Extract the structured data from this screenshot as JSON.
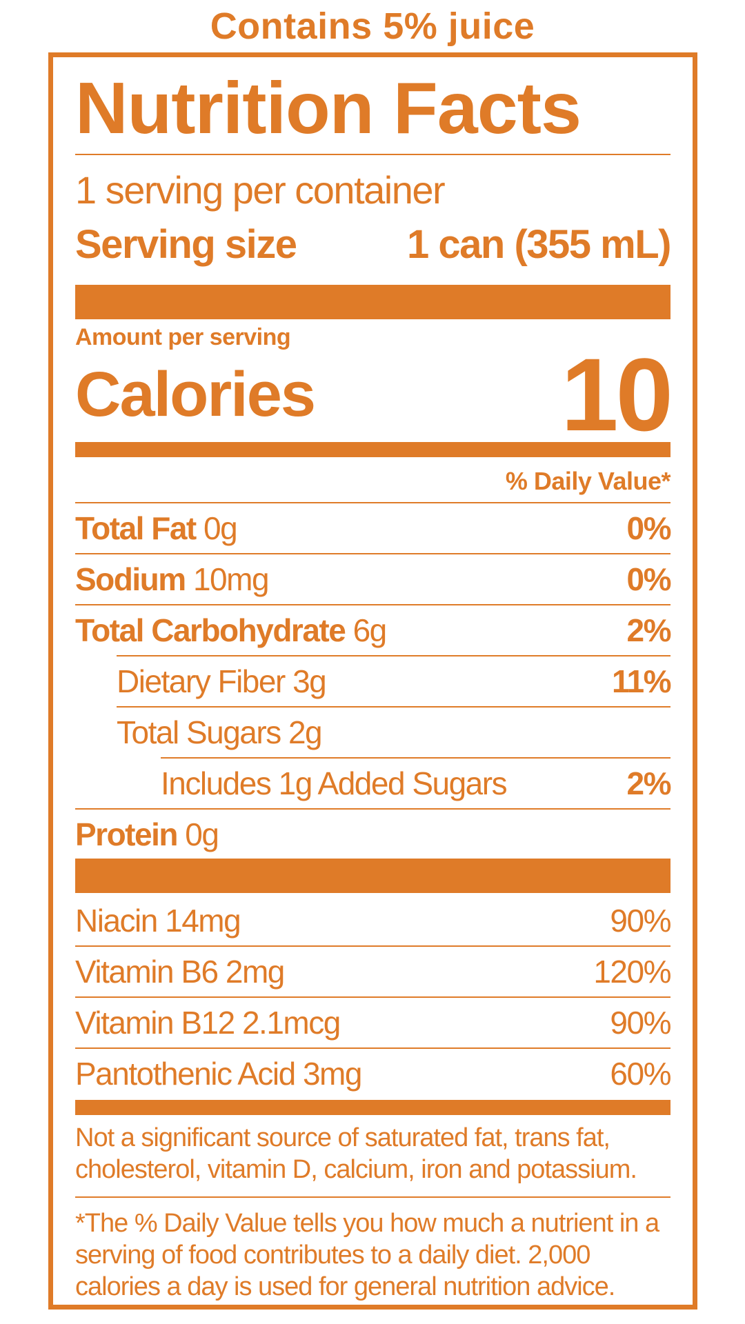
{
  "banner": "Contains 5% juice",
  "title": "Nutrition Facts",
  "servings_per_container": "1 serving per container",
  "serving_size": {
    "label": "Serving size",
    "value": "1 can (355 mL)"
  },
  "amount_per_serving": "Amount per serving",
  "calories": {
    "label": "Calories",
    "value": "10"
  },
  "daily_value_header": "% Daily Value*",
  "nutrients": [
    {
      "name": "Total Fat",
      "amount": "0g",
      "dv": "0%"
    },
    {
      "name": "Sodium",
      "amount": "10mg",
      "dv": "0%"
    },
    {
      "name": "Total Carbohydrate",
      "amount": "6g",
      "dv": "2%"
    },
    {
      "name": "Dietary Fiber 3g",
      "dv": "11%"
    },
    {
      "name": "Total Sugars 2g",
      "dv": ""
    },
    {
      "name": "Includes 1g Added Sugars",
      "dv": "2%"
    },
    {
      "name": "Protein",
      "amount": "0g",
      "dv": ""
    }
  ],
  "vitamins": [
    {
      "name": "Niacin 14mg",
      "dv": "90%"
    },
    {
      "name": "Vitamin B6 2mg",
      "dv": "120%"
    },
    {
      "name": "Vitamin B12 2.1mcg",
      "dv": "90%"
    },
    {
      "name": "Pantothenic Acid 3mg",
      "dv": "60%"
    }
  ],
  "footnotes": {
    "not_significant": "Not a significant source of saturated fat, trans fat, cholesterol, vitamin D, calcium, iron and potassium.",
    "daily_value_note": "*The % Daily Value tells you how much a nutrient in a serving of food contributes to a daily diet. 2,000 calories a day is used for general nutrition advice."
  },
  "colors": {
    "label_orange": "#df7b28",
    "background": "#ffffff"
  }
}
